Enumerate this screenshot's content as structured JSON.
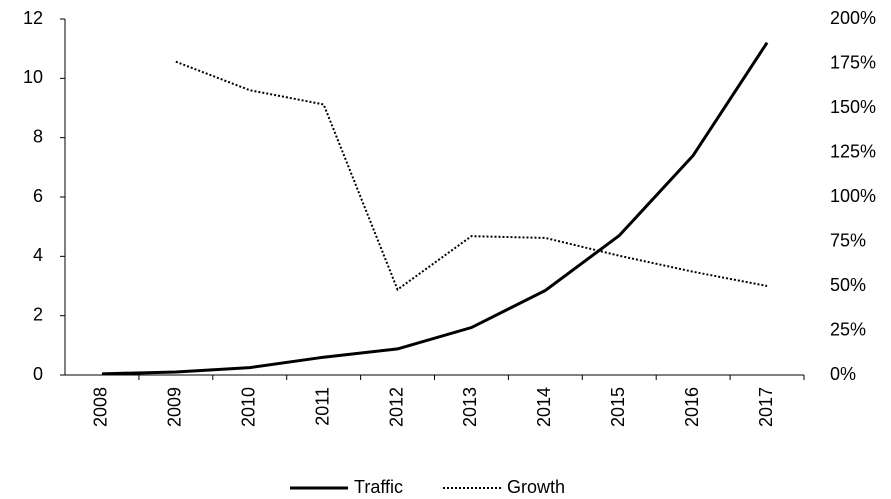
{
  "chart_data": {
    "type": "line",
    "categories": [
      "2008",
      "2009",
      "2010",
      "2011",
      "2012",
      "2013",
      "2014",
      "2015",
      "2016",
      "2017"
    ],
    "series": [
      {
        "name": "Traffic",
        "color": "#000000",
        "dash": "solid",
        "values": [
          0.04,
          0.1,
          0.25,
          0.6,
          0.88,
          1.6,
          2.85,
          4.7,
          7.4,
          11.2
        ]
      },
      {
        "name": "Growth",
        "color": "#000000",
        "dash": "dotted",
        "axis": "y2",
        "values": [
          null,
          176,
          160,
          152,
          48,
          78,
          77,
          67,
          58,
          50
        ]
      }
    ],
    "ylim": [
      0,
      12
    ],
    "yticks": [
      0,
      2,
      4,
      6,
      8,
      10,
      12
    ],
    "y2lim": [
      0,
      200
    ],
    "y2ticks": [
      {
        "value": 0,
        "label": "0%"
      },
      {
        "value": 25,
        "label": "25%"
      },
      {
        "value": 50,
        "label": "50%"
      },
      {
        "value": 75,
        "label": "75%"
      },
      {
        "value": 100,
        "label": "100%"
      },
      {
        "value": 125,
        "label": "125%"
      },
      {
        "value": 150,
        "label": "150%"
      },
      {
        "value": 175,
        "label": "175%"
      },
      {
        "value": 200,
        "label": "200%"
      }
    ],
    "legend": "bottom",
    "grid": false
  }
}
